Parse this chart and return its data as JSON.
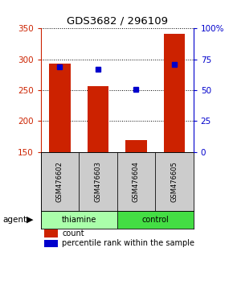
{
  "title": "GDS3682 / 296109",
  "samples": [
    "GSM476602",
    "GSM476603",
    "GSM476604",
    "GSM476605"
  ],
  "count_values": [
    293,
    257,
    170,
    342
  ],
  "percentile_values": [
    69,
    67,
    51,
    71
  ],
  "count_color": "#CC2200",
  "percentile_color": "#0000CC",
  "left_ylim": [
    150,
    350
  ],
  "left_yticks": [
    150,
    200,
    250,
    300,
    350
  ],
  "right_ylim": [
    0,
    100
  ],
  "right_yticks": [
    0,
    25,
    50,
    75,
    100
  ],
  "right_yticklabels": [
    "0",
    "25",
    "50",
    "75",
    "100%"
  ],
  "left_tick_color": "#CC2200",
  "right_tick_color": "#0000CC",
  "bar_width": 0.55,
  "percentile_marker_size": 5,
  "legend_count": "count",
  "legend_percentile": "percentile rank within the sample",
  "sample_box_color": "#CCCCCC",
  "thiamine_color": "#aaffaa",
  "control_color": "#44dd44",
  "bar_bottom": 150
}
